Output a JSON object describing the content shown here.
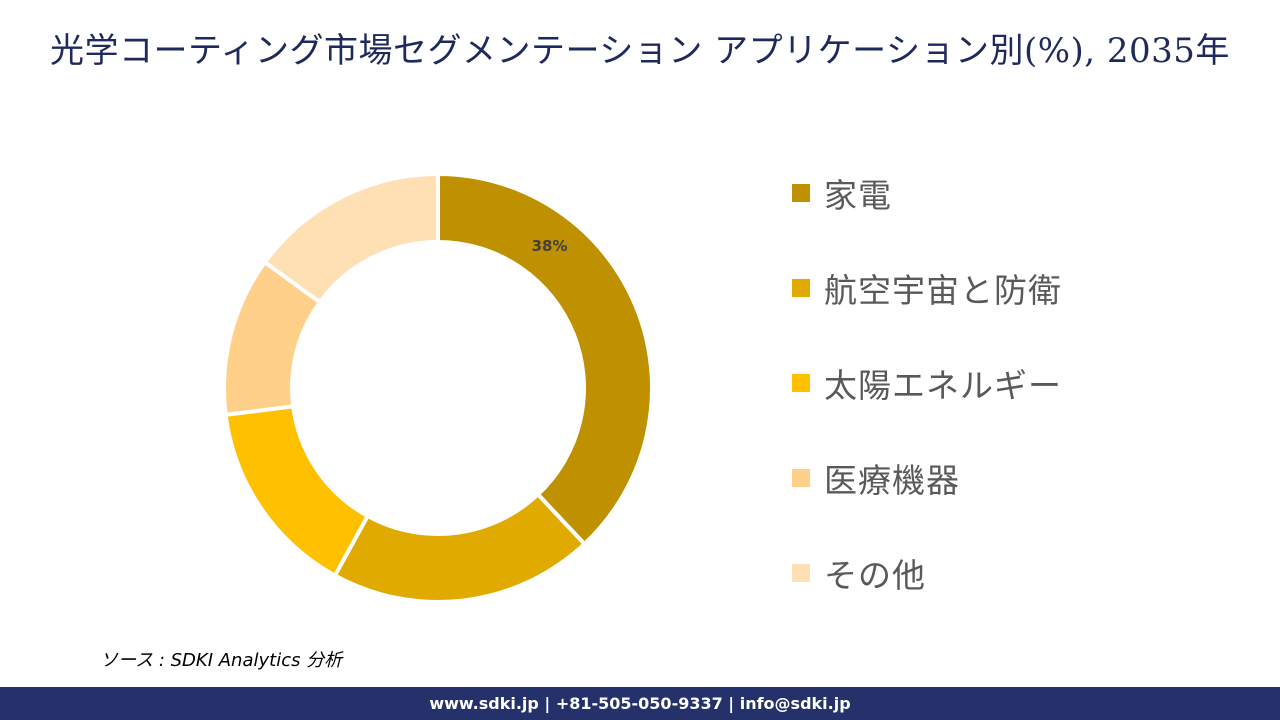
{
  "title": "光学コーティング市場セグメンテーション アプリケーション別(%), 2035年",
  "chart_data": {
    "type": "pie",
    "subtype": "donut",
    "title": "光学コーティング市場セグメンテーション アプリケーション別(%), 2035年",
    "categories": [
      "家電",
      "航空宇宙と防衛",
      "太陽エネルギー",
      "医療機器",
      "その他"
    ],
    "values": [
      38,
      20,
      15,
      12,
      15
    ],
    "colors": [
      "#bf9000",
      "#e0aa00",
      "#ffc000",
      "#ffd08a",
      "#ffe0b5"
    ],
    "data_labels": [
      "38%",
      "",
      "",
      "",
      ""
    ],
    "start_angle": 0,
    "direction": "clockwise",
    "legend_position": "right"
  },
  "legend": {
    "items": [
      {
        "label": "家電",
        "color": "#bf9000"
      },
      {
        "label": "航空宇宙と防衛",
        "color": "#e0aa00"
      },
      {
        "label": "太陽エネルギー",
        "color": "#ffc000"
      },
      {
        "label": "医療機器",
        "color": "#ffd08a"
      },
      {
        "label": "その他",
        "color": "#ffe0b5"
      }
    ]
  },
  "source": "ソース : SDKI Analytics  分析",
  "footer": {
    "text": "www.sdki.jp | +81-505-050-9337 | info@sdki.jp",
    "background": "#25316b"
  }
}
